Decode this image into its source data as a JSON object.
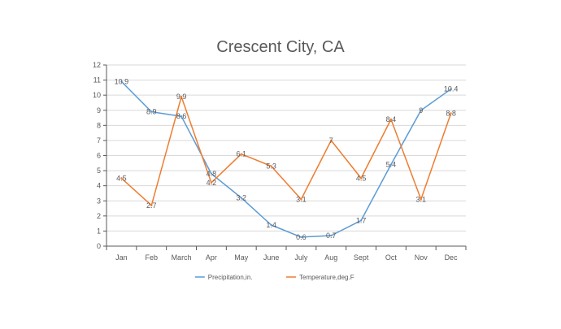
{
  "chart_data": {
    "type": "line",
    "title": "Crescent City, CA",
    "categories": [
      "Jan",
      "Feb",
      "March",
      "Apr",
      "May",
      "June",
      "July",
      "Aug",
      "Sept",
      "Oct",
      "Nov",
      "Dec"
    ],
    "ylim": [
      0,
      12
    ],
    "yticks": [
      0,
      1,
      2,
      3,
      4,
      5,
      6,
      7,
      8,
      9,
      10,
      11,
      12
    ],
    "grid": true,
    "legend_position": "bottom",
    "series": [
      {
        "name": "Precipitation,in.",
        "color": "#5b9bd5",
        "values": [
          10.9,
          8.9,
          8.6,
          4.8,
          3.2,
          1.4,
          0.6,
          0.7,
          1.7,
          5.4,
          9,
          10.4
        ]
      },
      {
        "name": "Temperature,deg.F",
        "color": "#ed7d31",
        "values": [
          4.5,
          2.7,
          9.9,
          4.2,
          6.1,
          5.3,
          3.1,
          7,
          4.5,
          8.4,
          3.1,
          8.8
        ]
      }
    ]
  }
}
